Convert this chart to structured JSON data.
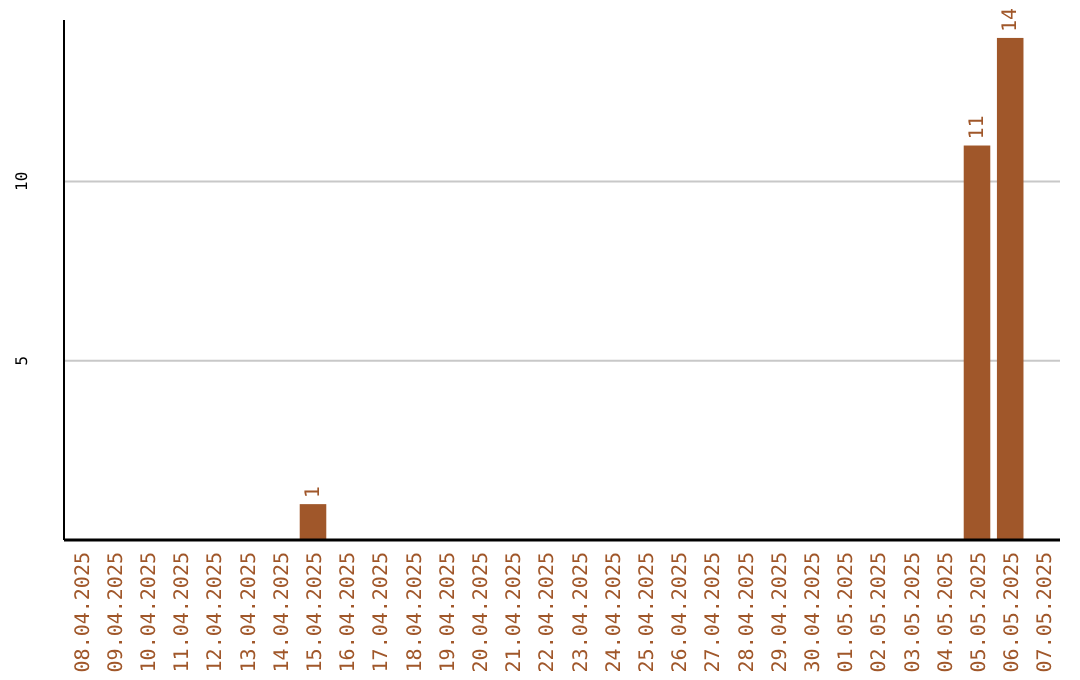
{
  "chart_data": {
    "type": "bar",
    "categories": [
      "08.04.2025",
      "09.04.2025",
      "10.04.2025",
      "11.04.2025",
      "12.04.2025",
      "13.04.2025",
      "14.04.2025",
      "15.04.2025",
      "16.04.2025",
      "17.04.2025",
      "18.04.2025",
      "19.04.2025",
      "20.04.2025",
      "21.04.2025",
      "22.04.2025",
      "23.04.2025",
      "24.04.2025",
      "25.04.2025",
      "26.04.2025",
      "27.04.2025",
      "28.04.2025",
      "29.04.2025",
      "30.04.2025",
      "01.05.2025",
      "02.05.2025",
      "03.05.2025",
      "04.05.2025",
      "05.05.2025",
      "06.05.2025",
      "07.05.2025"
    ],
    "values": [
      0,
      0,
      0,
      0,
      0,
      0,
      0,
      1,
      0,
      0,
      0,
      0,
      0,
      0,
      0,
      0,
      0,
      0,
      0,
      0,
      0,
      0,
      0,
      0,
      0,
      0,
      0,
      11,
      14,
      0
    ],
    "value_labels": [
      null,
      null,
      null,
      null,
      null,
      null,
      null,
      "1",
      null,
      null,
      null,
      null,
      null,
      null,
      null,
      null,
      null,
      null,
      null,
      null,
      null,
      null,
      null,
      null,
      null,
      null,
      null,
      "11",
      "14",
      null
    ],
    "color": "#a0572a",
    "ylim": [
      0,
      14.5
    ],
    "yticks": [
      5,
      10
    ],
    "grid": "y"
  }
}
